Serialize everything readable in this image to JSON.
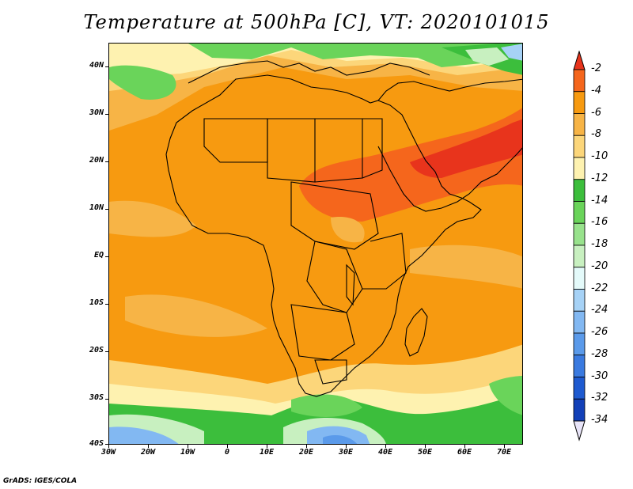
{
  "title": "Temperature at 500hPa [C], VT: 2020101015",
  "credit": "GrADS: IGES/COLA",
  "map": {
    "lon_range": [
      -30,
      75
    ],
    "lat_range": [
      -40,
      45
    ],
    "lat_ticks": [
      "40N",
      "30N",
      "20N",
      "10N",
      "EQ",
      "10S",
      "20S",
      "30S",
      "40S"
    ],
    "lon_ticks": [
      "30W",
      "20W",
      "10W",
      "0",
      "10E",
      "20E",
      "30E",
      "40E",
      "50E",
      "60E",
      "70E"
    ]
  },
  "colorbar": {
    "labels": [
      "-2",
      "-4",
      "-6",
      "-8",
      "-10",
      "-12",
      "-14",
      "-16",
      "-18",
      "-20",
      "-22",
      "-24",
      "-26",
      "-28",
      "-30",
      "-32",
      "-34"
    ],
    "colors": [
      "#e8341c",
      "#f5661c",
      "#f79a10",
      "#f7b446",
      "#fcd67a",
      "#fef2b0",
      "#3cbe3c",
      "#6ad45a",
      "#98e28c",
      "#c8f0c0",
      "#e4fafa",
      "#a6d2f6",
      "#82b8f2",
      "#5a9aea",
      "#3a7ae0",
      "#1e5ad0",
      "#1240b8",
      "#0a1e78"
    ]
  }
}
